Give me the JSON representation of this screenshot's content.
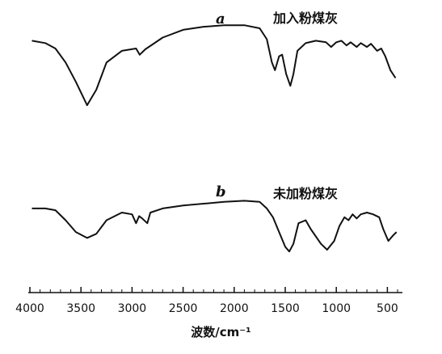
{
  "chart_data": {
    "type": "line",
    "title": "",
    "xlabel": "波数/cm⁻¹",
    "ylabel": "",
    "xlim": [
      4000,
      400
    ],
    "x_reversed": true,
    "x_ticks": [
      4000,
      3500,
      3000,
      2500,
      2000,
      1500,
      1000,
      500
    ],
    "grid": false,
    "series": [
      {
        "name": "a",
        "caption": "加入粉煤灰",
        "points": [
          [
            3980,
            0.58
          ],
          [
            3850,
            0.55
          ],
          [
            3750,
            0.48
          ],
          [
            3650,
            0.3
          ],
          [
            3550,
            0.05
          ],
          [
            3440,
            -0.25
          ],
          [
            3350,
            -0.05
          ],
          [
            3250,
            0.3
          ],
          [
            3100,
            0.45
          ],
          [
            2960,
            0.48
          ],
          [
            2925,
            0.4
          ],
          [
            2870,
            0.47
          ],
          [
            2700,
            0.62
          ],
          [
            2500,
            0.72
          ],
          [
            2300,
            0.76
          ],
          [
            2100,
            0.78
          ],
          [
            1900,
            0.78
          ],
          [
            1750,
            0.74
          ],
          [
            1680,
            0.6
          ],
          [
            1630,
            0.3
          ],
          [
            1600,
            0.2
          ],
          [
            1560,
            0.38
          ],
          [
            1530,
            0.4
          ],
          [
            1490,
            0.15
          ],
          [
            1450,
            0.0
          ],
          [
            1420,
            0.15
          ],
          [
            1380,
            0.45
          ],
          [
            1300,
            0.55
          ],
          [
            1200,
            0.58
          ],
          [
            1100,
            0.56
          ],
          [
            1050,
            0.5
          ],
          [
            1000,
            0.56
          ],
          [
            950,
            0.58
          ],
          [
            900,
            0.52
          ],
          [
            860,
            0.56
          ],
          [
            800,
            0.5
          ],
          [
            760,
            0.55
          ],
          [
            700,
            0.5
          ],
          [
            660,
            0.54
          ],
          [
            600,
            0.45
          ],
          [
            560,
            0.48
          ],
          [
            520,
            0.38
          ],
          [
            470,
            0.2
          ],
          [
            420,
            0.1
          ]
        ]
      },
      {
        "name": "b",
        "caption": "未加粉煤灰",
        "points": [
          [
            3980,
            0.55
          ],
          [
            3850,
            0.55
          ],
          [
            3750,
            0.52
          ],
          [
            3650,
            0.35
          ],
          [
            3550,
            0.15
          ],
          [
            3440,
            0.05
          ],
          [
            3350,
            0.12
          ],
          [
            3250,
            0.35
          ],
          [
            3100,
            0.48
          ],
          [
            3000,
            0.45
          ],
          [
            2960,
            0.3
          ],
          [
            2930,
            0.42
          ],
          [
            2900,
            0.38
          ],
          [
            2850,
            0.3
          ],
          [
            2820,
            0.48
          ],
          [
            2700,
            0.55
          ],
          [
            2500,
            0.6
          ],
          [
            2300,
            0.63
          ],
          [
            2100,
            0.66
          ],
          [
            1900,
            0.68
          ],
          [
            1750,
            0.66
          ],
          [
            1680,
            0.55
          ],
          [
            1620,
            0.4
          ],
          [
            1560,
            0.15
          ],
          [
            1500,
            -0.1
          ],
          [
            1460,
            -0.18
          ],
          [
            1420,
            -0.05
          ],
          [
            1370,
            0.3
          ],
          [
            1300,
            0.35
          ],
          [
            1250,
            0.2
          ],
          [
            1150,
            -0.05
          ],
          [
            1090,
            -0.15
          ],
          [
            1020,
            0.0
          ],
          [
            970,
            0.25
          ],
          [
            920,
            0.4
          ],
          [
            880,
            0.35
          ],
          [
            840,
            0.45
          ],
          [
            800,
            0.38
          ],
          [
            760,
            0.45
          ],
          [
            700,
            0.48
          ],
          [
            640,
            0.45
          ],
          [
            580,
            0.4
          ],
          [
            540,
            0.2
          ],
          [
            490,
            0.0
          ],
          [
            440,
            0.1
          ],
          [
            410,
            0.15
          ]
        ]
      }
    ]
  }
}
